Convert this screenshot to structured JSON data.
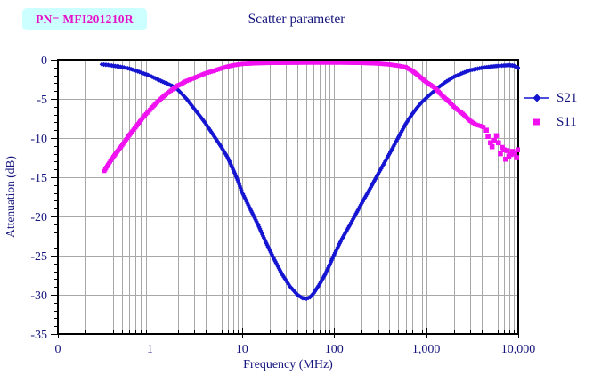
{
  "header": {
    "pn_label": "PN= MFI201210R",
    "title": "Scatter parameter"
  },
  "legend": {
    "items": [
      {
        "label": "S21",
        "marker": "line-diamond-icon",
        "color": "#1414d2"
      },
      {
        "label": "S11",
        "marker": "square-icon",
        "color": "#f010f0"
      }
    ]
  },
  "colors": {
    "s21_blue": "#1414d2",
    "s11_magenta": "#f010f0",
    "text_navy": "#15157d",
    "grid_gray": "#a8a8a8",
    "axis_black": "#000000",
    "pn_box_bg": "#ccffff",
    "pn_box_text": "#e60fc8"
  },
  "chart_data": {
    "type": "line",
    "title": "Scatter parameter",
    "xlabel": "Frequency (MHz)",
    "ylabel": "Attenuation (dB)",
    "x_scale": "log",
    "xlim": [
      0.1,
      10000
    ],
    "ylim": [
      -35,
      0
    ],
    "grid": true,
    "legend_position": "right",
    "x_ticks": [
      {
        "value": 0.1,
        "label": "0"
      },
      {
        "value": 1,
        "label": "1"
      },
      {
        "value": 10,
        "label": "10"
      },
      {
        "value": 100,
        "label": "100"
      },
      {
        "value": 1000,
        "label": "1,000"
      },
      {
        "value": 10000,
        "label": "10,000"
      }
    ],
    "y_ticks": [
      {
        "value": 0,
        "label": "0"
      },
      {
        "value": -5,
        "label": "-5"
      },
      {
        "value": -10,
        "label": "-10"
      },
      {
        "value": -15,
        "label": "-15"
      },
      {
        "value": -20,
        "label": "-20"
      },
      {
        "value": -25,
        "label": "-25"
      },
      {
        "value": -30,
        "label": "-30"
      },
      {
        "value": -35,
        "label": "-35"
      }
    ],
    "y_minor_step": 1,
    "series": [
      {
        "name": "S21",
        "color": "#1414d2",
        "marker": "diamond",
        "points": [
          [
            0.3,
            -0.6
          ],
          [
            0.35,
            -0.68
          ],
          [
            0.4,
            -0.78
          ],
          [
            0.5,
            -0.95
          ],
          [
            0.6,
            -1.15
          ],
          [
            0.7,
            -1.4
          ],
          [
            0.85,
            -1.75
          ],
          [
            1,
            -2.05
          ],
          [
            1.2,
            -2.5
          ],
          [
            1.5,
            -3.0
          ],
          [
            1.75,
            -3.35
          ],
          [
            2,
            -3.8
          ],
          [
            2.5,
            -5.0
          ],
          [
            3,
            -6.2
          ],
          [
            3.5,
            -7.2
          ],
          [
            4,
            -8.1
          ],
          [
            5,
            -9.8
          ],
          [
            6,
            -11.2
          ],
          [
            7,
            -12.5
          ],
          [
            8,
            -14.0
          ],
          [
            9,
            -15.4
          ],
          [
            10,
            -16.9
          ],
          [
            12,
            -18.8
          ],
          [
            15,
            -21.1
          ],
          [
            18,
            -23.2
          ],
          [
            22,
            -25.3
          ],
          [
            27,
            -27.3
          ],
          [
            33,
            -28.9
          ],
          [
            40,
            -30.0
          ],
          [
            45,
            -30.4
          ],
          [
            50,
            -30.5
          ],
          [
            55,
            -30.3
          ],
          [
            60,
            -29.8
          ],
          [
            70,
            -28.6
          ],
          [
            80,
            -27.4
          ],
          [
            90,
            -26.1
          ],
          [
            100,
            -24.9
          ],
          [
            120,
            -23.0
          ],
          [
            150,
            -21.0
          ],
          [
            200,
            -18.3
          ],
          [
            250,
            -16.3
          ],
          [
            300,
            -14.6
          ],
          [
            400,
            -12.0
          ],
          [
            500,
            -9.9
          ],
          [
            600,
            -8.2
          ],
          [
            700,
            -7.0
          ],
          [
            800,
            -6.1
          ],
          [
            900,
            -5.4
          ],
          [
            1000,
            -4.9
          ],
          [
            1300,
            -3.7
          ],
          [
            1600,
            -2.9
          ],
          [
            2000,
            -2.2
          ],
          [
            2500,
            -1.7
          ],
          [
            3000,
            -1.35
          ],
          [
            4000,
            -1.05
          ],
          [
            5000,
            -0.9
          ],
          [
            6000,
            -0.8
          ],
          [
            7000,
            -0.75
          ],
          [
            8000,
            -0.7
          ],
          [
            9000,
            -0.78
          ],
          [
            10000,
            -1.05
          ]
        ]
      },
      {
        "name": "S11",
        "color": "#f010f0",
        "marker": "square",
        "points": [
          [
            0.32,
            -14.2
          ],
          [
            0.35,
            -13.4
          ],
          [
            0.4,
            -12.4
          ],
          [
            0.45,
            -11.6
          ],
          [
            0.5,
            -10.9
          ],
          [
            0.6,
            -9.6
          ],
          [
            0.7,
            -8.6
          ],
          [
            0.85,
            -7.3
          ],
          [
            1,
            -6.4
          ],
          [
            1.2,
            -5.4
          ],
          [
            1.5,
            -4.4
          ],
          [
            1.75,
            -3.8
          ],
          [
            2,
            -3.3
          ],
          [
            2.2,
            -3.1
          ],
          [
            2.4,
            -2.8
          ],
          [
            3,
            -2.35
          ],
          [
            4,
            -1.75
          ],
          [
            5,
            -1.4
          ],
          [
            6,
            -1.1
          ],
          [
            7,
            -0.88
          ],
          [
            8,
            -0.72
          ],
          [
            10,
            -0.55
          ],
          [
            15,
            -0.45
          ],
          [
            20,
            -0.42
          ],
          [
            30,
            -0.4
          ],
          [
            50,
            -0.38
          ],
          [
            80,
            -0.38
          ],
          [
            120,
            -0.38
          ],
          [
            200,
            -0.42
          ],
          [
            300,
            -0.5
          ],
          [
            400,
            -0.62
          ],
          [
            500,
            -0.78
          ],
          [
            600,
            -0.95
          ],
          [
            700,
            -1.4
          ],
          [
            800,
            -1.9
          ],
          [
            900,
            -2.4
          ],
          [
            1000,
            -2.85
          ],
          [
            1250,
            -3.6
          ],
          [
            1500,
            -4.6
          ],
          [
            1750,
            -5.3
          ],
          [
            2000,
            -6.0
          ],
          [
            2500,
            -6.9
          ],
          [
            3000,
            -7.8
          ],
          [
            3500,
            -8.3
          ],
          [
            4000,
            -8.5
          ],
          [
            4200,
            -8.6
          ]
        ],
        "tail_points": [
          [
            4500,
            -9.0
          ],
          [
            4700,
            -9.8
          ],
          [
            5000,
            -10.6
          ],
          [
            5200,
            -11.1
          ],
          [
            5500,
            -10.3
          ],
          [
            5800,
            -9.7
          ],
          [
            6100,
            -10.6
          ],
          [
            6400,
            -12.0
          ],
          [
            6700,
            -11.2
          ],
          [
            7000,
            -11.5
          ],
          [
            7300,
            -12.7
          ],
          [
            7600,
            -11.6
          ],
          [
            7900,
            -12.3
          ],
          [
            8300,
            -12.1
          ],
          [
            8700,
            -11.7
          ],
          [
            9200,
            -12.0
          ],
          [
            9600,
            -12.5
          ],
          [
            10000,
            -11.5
          ]
        ]
      }
    ]
  }
}
